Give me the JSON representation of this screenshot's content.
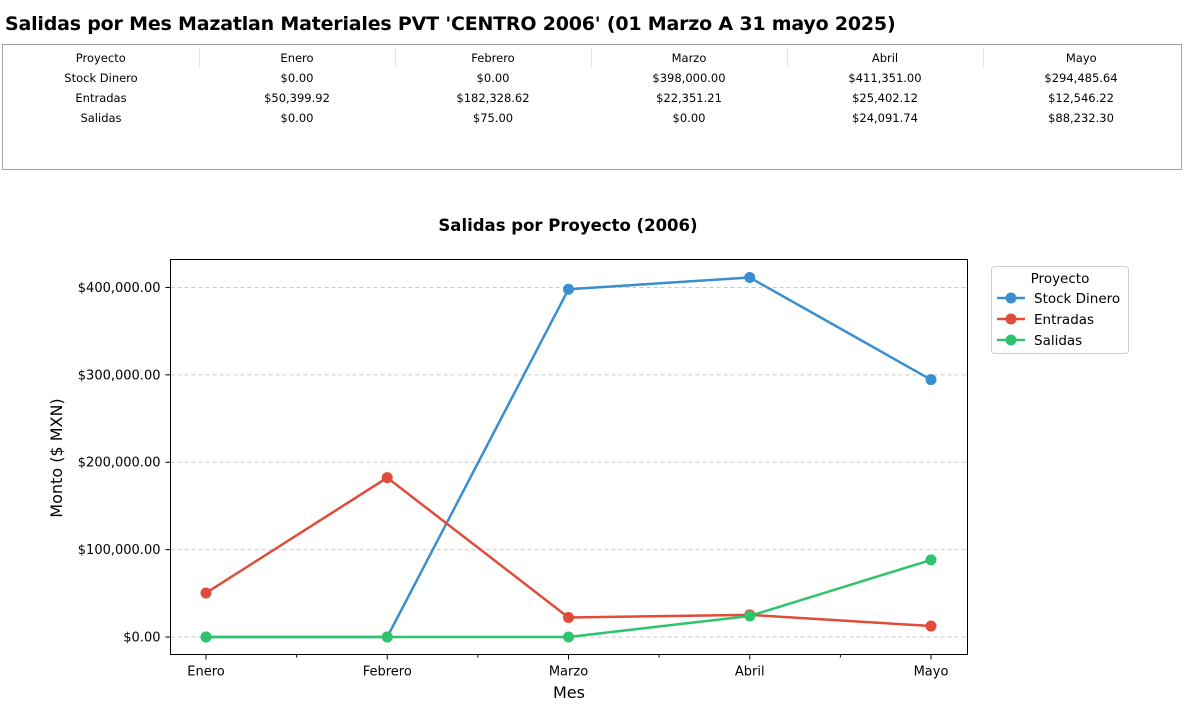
{
  "page": {
    "title": "Salidas por Mes Mazatlan Materiales PVT 'CENTRO 2006' (01 Marzo A 31 mayo 2025)"
  },
  "table": {
    "headers": [
      "Proyecto",
      "Enero",
      "Febrero",
      "Marzo",
      "Abril",
      "Mayo"
    ],
    "rows": [
      [
        "Stock Dinero",
        "$0.00",
        "$0.00",
        "$398,000.00",
        "$411,351.00",
        "$294,485.64"
      ],
      [
        "Entradas",
        "$50,399.92",
        "$182,328.62",
        "$22,351.21",
        "$25,402.12",
        "$12,546.22"
      ],
      [
        "Salidas",
        "$0.00",
        "$75.00",
        "$0.00",
        "$24,091.74",
        "$88,232.30"
      ]
    ]
  },
  "chart_data": {
    "type": "line",
    "title": "Salidas por Proyecto (2006)",
    "xlabel": "Mes",
    "ylabel": "Monto ($ MXN)",
    "categories": [
      "Enero",
      "Febrero",
      "Marzo",
      "Abril",
      "Mayo"
    ],
    "ylim": [
      -20000,
      432000
    ],
    "yticks": [
      0,
      100000,
      200000,
      300000,
      400000
    ],
    "ytick_labels": [
      "$0.00",
      "$100,000.00",
      "$200,000.00",
      "$300,000.00",
      "$400,000.00"
    ],
    "grid": "y-dashed",
    "legend": {
      "title": "Proyecto",
      "placement": "outside-right-top"
    },
    "series": [
      {
        "name": "Stock Dinero",
        "color": "#3b8fd0",
        "values": [
          0,
          0,
          398000,
          411351,
          294485.64
        ]
      },
      {
        "name": "Entradas",
        "color": "#e04b3a",
        "values": [
          50399.92,
          182328.62,
          22351.21,
          25402.12,
          12546.22
        ]
      },
      {
        "name": "Salidas",
        "color": "#2fc46b",
        "values": [
          0,
          75,
          0,
          24091.74,
          88232.3
        ]
      }
    ]
  }
}
